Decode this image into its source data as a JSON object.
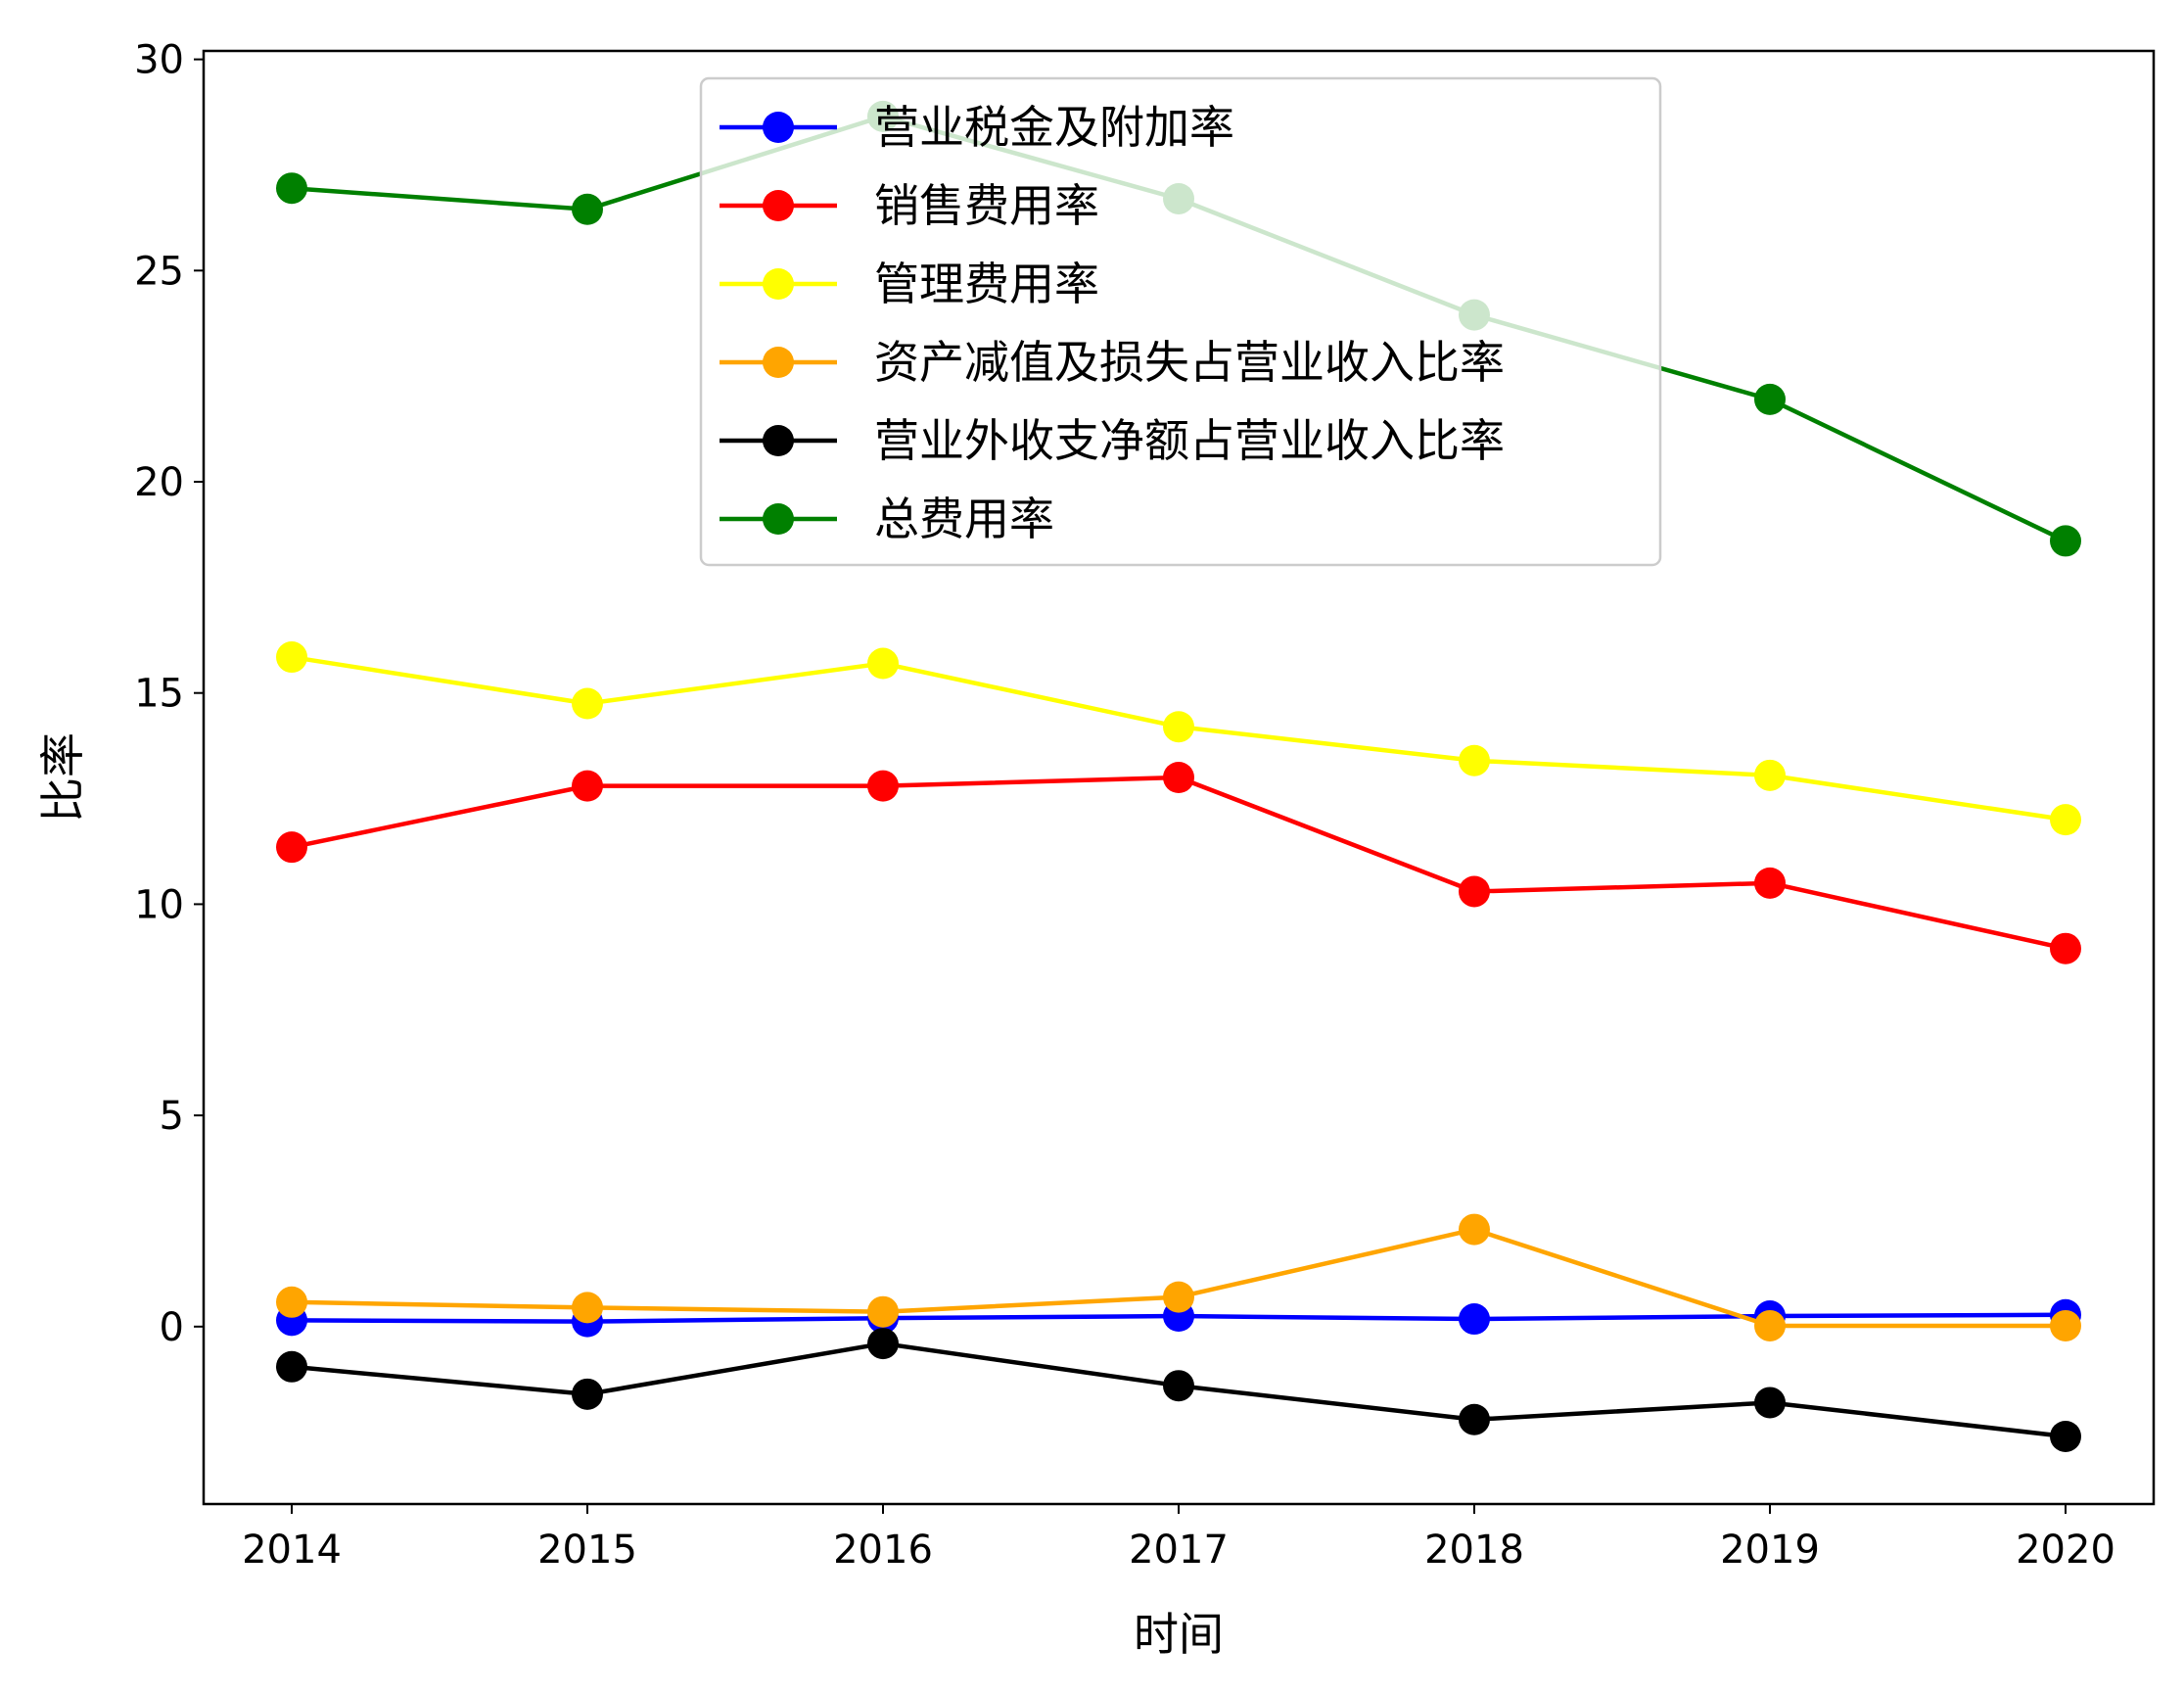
{
  "chart_data": {
    "type": "line",
    "title": "",
    "xlabel": "时间",
    "ylabel": "比率",
    "x": [
      "2014",
      "2015",
      "2016",
      "2017",
      "2018",
      "2019",
      "2020"
    ],
    "ylim": [
      -4.2,
      30.2
    ],
    "yticks": [
      0,
      5,
      10,
      15,
      20,
      25,
      30
    ],
    "grid": false,
    "legend_position": "top-center",
    "series": [
      {
        "name": "营业税金及附加率",
        "color": "#0000ff",
        "values": [
          0.15,
          0.12,
          0.2,
          0.25,
          0.18,
          0.25,
          0.28
        ]
      },
      {
        "name": "销售费用率",
        "color": "#ff0000",
        "values": [
          11.35,
          12.8,
          12.8,
          13.0,
          10.3,
          10.5,
          8.95
        ]
      },
      {
        "name": "管理费用率",
        "color": "#ffff00",
        "values": [
          15.85,
          14.75,
          15.7,
          14.2,
          13.4,
          13.05,
          12.0
        ]
      },
      {
        "name": "资产减值及损失占营业收入比率",
        "color": "#ffa500",
        "values": [
          0.58,
          0.45,
          0.35,
          0.7,
          2.3,
          0.02,
          0.02
        ]
      },
      {
        "name": "营业外收支净额占营业收入比率",
        "color": "#000000",
        "values": [
          -0.95,
          -1.6,
          -0.4,
          -1.4,
          -2.2,
          -1.8,
          -2.6
        ]
      },
      {
        "name": "总费用率",
        "color": "#008000",
        "values": [
          26.95,
          26.45,
          28.65,
          26.7,
          23.95,
          21.95,
          18.6
        ]
      }
    ]
  }
}
